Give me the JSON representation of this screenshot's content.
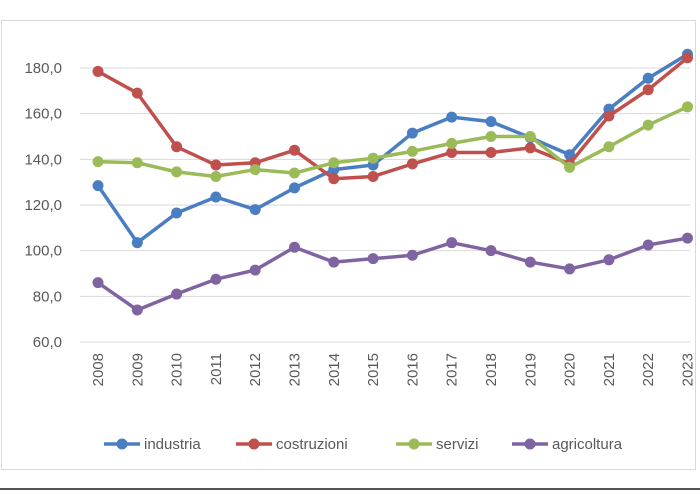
{
  "chart_data": {
    "type": "line",
    "title": "",
    "xlabel": "",
    "ylabel": "",
    "ylim": [
      60,
      190
    ],
    "yticks": [
      "60,0",
      "80,0",
      "100,0",
      "120,0",
      "140,0",
      "160,0",
      "180,0"
    ],
    "ytick_values": [
      60,
      80,
      100,
      120,
      140,
      160,
      180
    ],
    "categories": [
      "2008",
      "2009",
      "2010",
      "2011",
      "2012",
      "2013",
      "2014",
      "2015",
      "2016",
      "2017",
      "2018",
      "2019",
      "2020",
      "2021",
      "2022",
      "2023"
    ],
    "legend_position": "bottom",
    "series": [
      {
        "name": "industria",
        "color": "#4a7ec2",
        "values": [
          128.5,
          103.5,
          116.5,
          123.5,
          118.0,
          127.5,
          135.5,
          137.5,
          151.5,
          158.5,
          156.5,
          149.5,
          142.0,
          162.0,
          175.5,
          186.0
        ]
      },
      {
        "name": "costruzioni",
        "color": "#c0504d",
        "values": [
          178.5,
          169.0,
          145.5,
          137.5,
          138.5,
          144.0,
          131.5,
          132.5,
          138.0,
          143.0,
          143.0,
          145.0,
          138.0,
          159.0,
          170.5,
          184.5
        ]
      },
      {
        "name": "servizi",
        "color": "#9bbb59",
        "values": [
          139.0,
          138.5,
          134.5,
          132.5,
          135.5,
          134.0,
          138.5,
          140.5,
          143.5,
          147.0,
          150.0,
          150.0,
          136.5,
          145.5,
          155.0,
          163.0
        ]
      },
      {
        "name": "agricoltura",
        "color": "#8064a2",
        "values": [
          86.0,
          74.0,
          81.0,
          87.5,
          91.5,
          101.5,
          95.0,
          96.5,
          98.0,
          103.5,
          100.0,
          95.0,
          92.0,
          96.0,
          102.5,
          105.5
        ]
      }
    ]
  }
}
